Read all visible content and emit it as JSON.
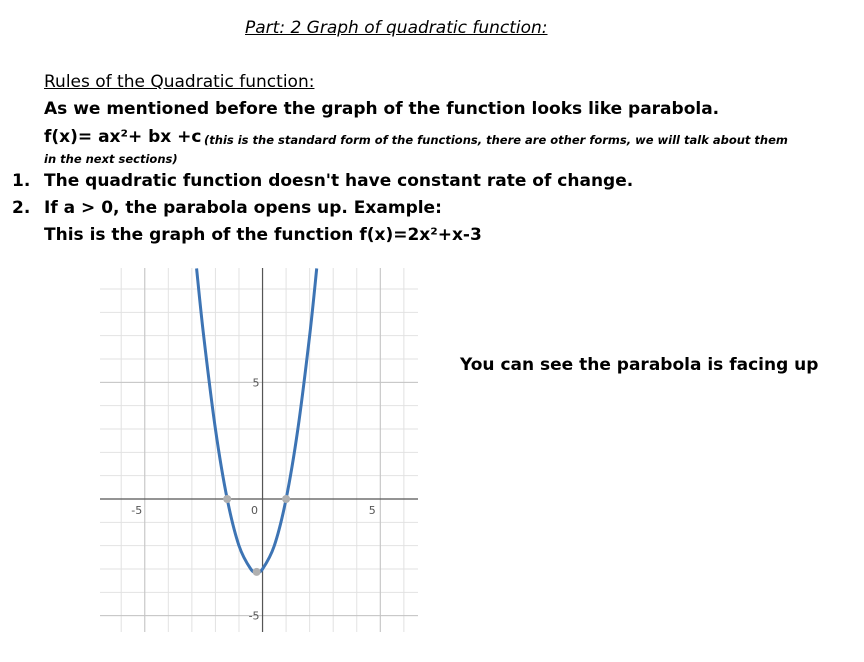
{
  "header": {
    "title": "Part: 2  Graph of quadratic function:"
  },
  "rules": {
    "heading": "Rules of the Quadratic function:",
    "intro": "As we mentioned before the graph of the function looks like parabola.",
    "formula": "f(x)= ax²+ bx +c",
    "formula_note": "(this is the standard form of the functions, there are other forms, we will talk about them in the next sections)"
  },
  "list": [
    {
      "marker": "1.",
      "text": "The quadratic function doesn't have constant rate of change."
    },
    {
      "marker": "2.",
      "text": "If a > 0, the parabola opens up. Example:"
    }
  ],
  "example_caption": "This is the graph of the function f(x)=2x²+x-3",
  "side_note": "You can see the parabola is facing up",
  "chart_data": {
    "type": "line",
    "x": [
      -2.8,
      -2.5,
      -2,
      -1.5,
      -1,
      -0.5,
      -0.25,
      0,
      0.5,
      1,
      1.5,
      2,
      2.3
    ],
    "values": [
      9.88,
      7,
      3,
      0,
      -2,
      -3,
      -3.125,
      -3,
      -2,
      0,
      3,
      7,
      9.88
    ],
    "color": "#3d74b4",
    "marked_x": [
      -1.5,
      1,
      -0.25
    ],
    "marked_values": [
      0,
      0,
      -3.125
    ],
    "marker_color": "#b0b0b0",
    "xlim": [
      -6.9,
      6.6
    ],
    "ylim": [
      -5.7,
      9.9
    ],
    "xticks": [
      -5,
      0,
      5
    ],
    "yticks": [
      -5,
      5
    ],
    "minor_grid_step": 1,
    "grid": true
  }
}
